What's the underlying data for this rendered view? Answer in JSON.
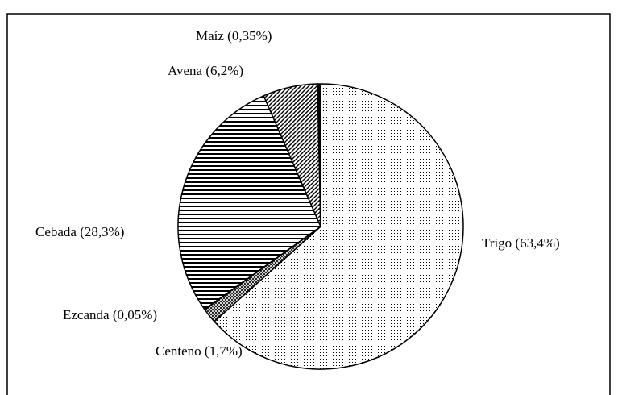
{
  "chart_data": {
    "type": "pie",
    "labels": [
      "Trigo (63,4%)",
      "Centeno (1,7%)",
      "Ezcanda (0,05%)",
      "Cebada (28,3%)",
      "Avena (6,2%)",
      "Maíz (0,35%)"
    ],
    "values": [
      63.4,
      1.7,
      0.05,
      28.3,
      6.2,
      0.35
    ],
    "fills": [
      "dots",
      "cross",
      "cross",
      "horizontal",
      "diagonal",
      "solid"
    ]
  }
}
